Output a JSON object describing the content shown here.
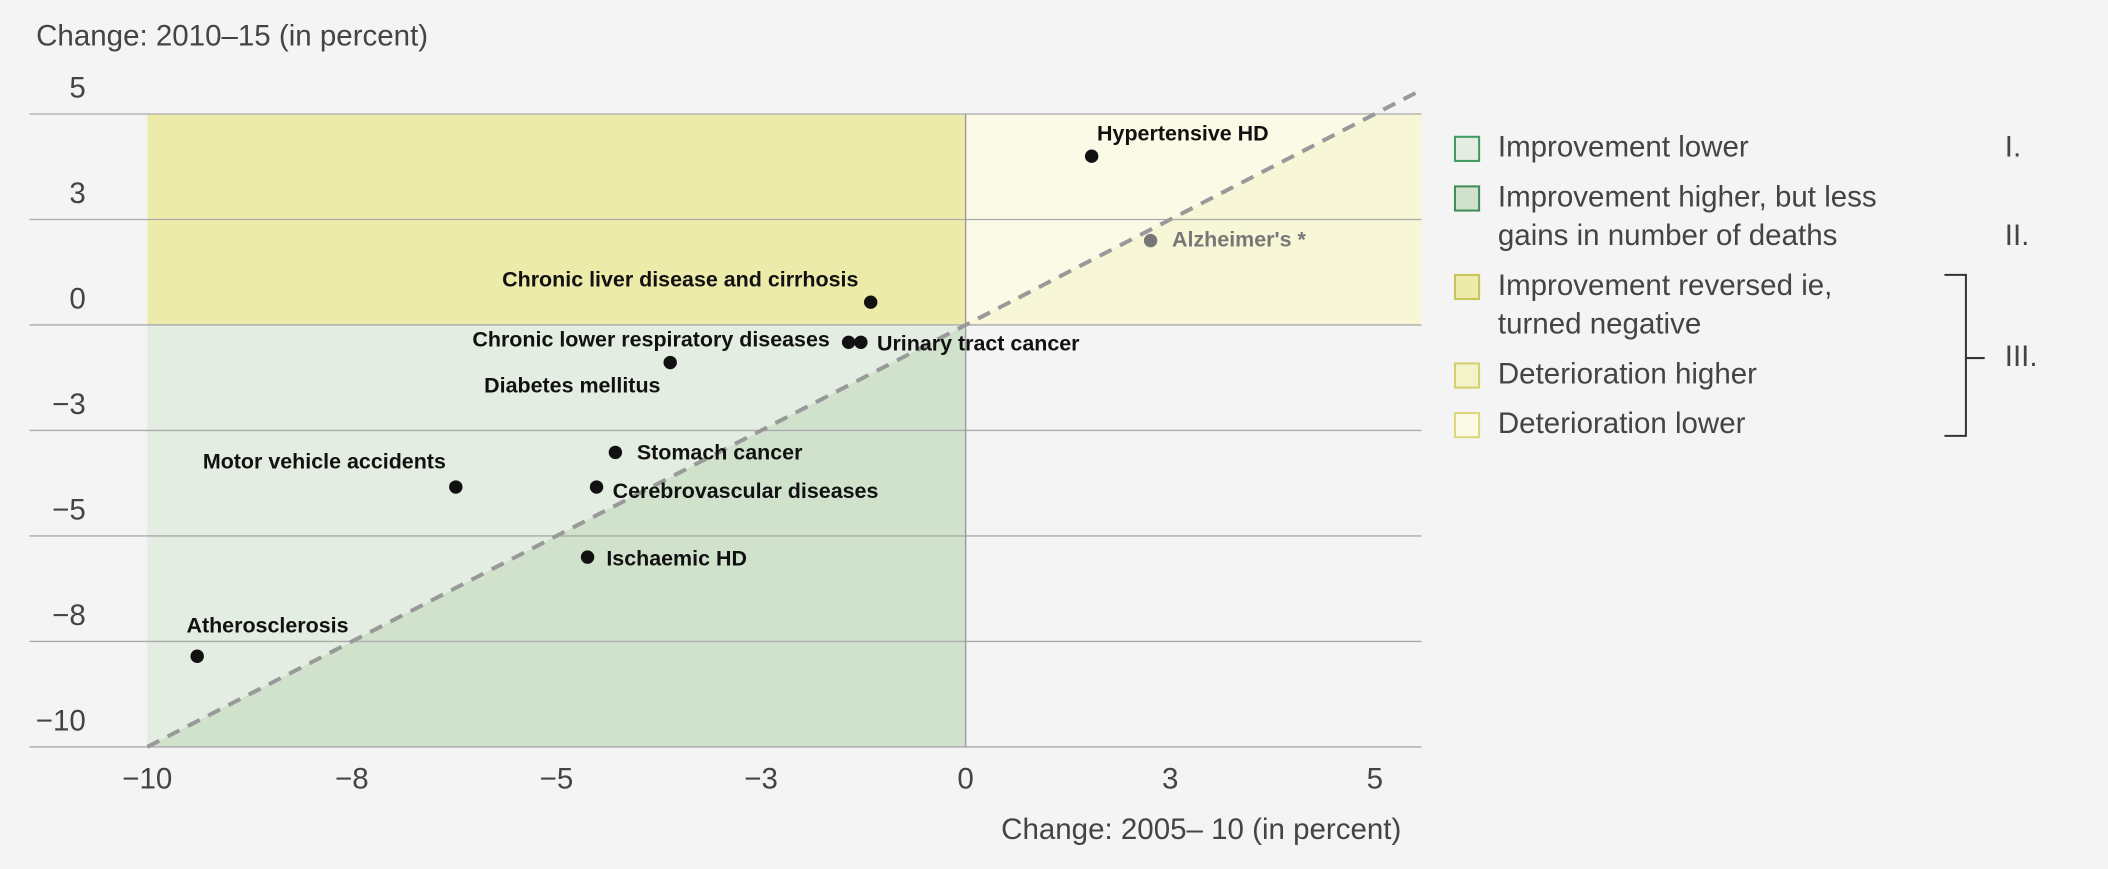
{
  "chart_data": {
    "type": "scatter",
    "y_label": "Change: 2010–15 (in percent)",
    "x_label": "Change: 2005– 10 (in percent)",
    "xlim": [
      -11.44,
      5.57
    ],
    "ylim": [
      -10,
      5
    ],
    "xticks": [
      {
        "value": -10,
        "label": "−10"
      },
      {
        "value": -7.5,
        "label": "−8"
      },
      {
        "value": -5,
        "label": "−5"
      },
      {
        "value": -2.5,
        "label": "−3"
      },
      0,
      {
        "value": 2.5,
        "label": "3"
      },
      5
    ],
    "yticks": [
      5,
      {
        "value": 2.5,
        "label": "3"
      },
      0,
      {
        "value": -2.5,
        "label": "−3"
      },
      {
        "value": -5,
        "label": "−5"
      },
      {
        "value": -7.5,
        "label": "−8"
      },
      {
        "value": -10,
        "label": "−10"
      }
    ],
    "grid": true,
    "points": [
      {
        "name": "Hypertensive HD",
        "x": 1.54,
        "y": 4.0,
        "color": "#111111"
      },
      {
        "name": "Alzheimer's *",
        "x": 2.26,
        "y": 2.0,
        "color": "#777777"
      },
      {
        "name": "Chronic liver disease and cirrhosis",
        "x": -1.16,
        "y": 0.54,
        "color": "#111111"
      },
      {
        "name": "Chronic lower respiratory diseases",
        "x": -1.43,
        "y": -0.41,
        "color": "#111111"
      },
      {
        "name": "Urinary tract cancer",
        "x": -1.28,
        "y": -0.41,
        "color": "#111111"
      },
      {
        "name": "Diabetes mellitus",
        "x": -3.61,
        "y": -0.89,
        "color": "#111111"
      },
      {
        "name": "Stomach cancer",
        "x": -4.28,
        "y": -3.02,
        "color": "#111111"
      },
      {
        "name": "Motor vehicle accidents",
        "x": -6.23,
        "y": -3.84,
        "color": "#111111"
      },
      {
        "name": "Cerebrovascular diseases",
        "x": -4.51,
        "y": -3.84,
        "color": "#111111"
      },
      {
        "name": "Ischaemic HD",
        "x": -4.62,
        "y": -5.5,
        "color": "#111111"
      },
      {
        "name": "Atherosclerosis",
        "x": -9.39,
        "y": -7.85,
        "color": "#111111"
      }
    ],
    "legend": [
      {
        "lines": [
          "Improvement lower"
        ],
        "color": "#e4ede1",
        "edge": "#3f9a60",
        "group": "I."
      },
      {
        "lines": [
          "Improvement higher, but less",
          "gains in number of deaths"
        ],
        "color": "#d0e2cc",
        "edge": "#3f8a55",
        "group": "II."
      },
      {
        "lines": [
          "Improvement reversed ie,",
          "turned negative"
        ],
        "color": "#ecebaa",
        "edge": "#c8c35a"
      },
      {
        "lines": [
          "Deterioration higher"
        ],
        "color": "#f4f2c8",
        "edge": "#d4cf6a"
      },
      {
        "lines": [
          "Deterioration lower"
        ],
        "color": "#fbfae6",
        "edge": "#dcd77a"
      }
    ],
    "legend_group": "III."
  }
}
